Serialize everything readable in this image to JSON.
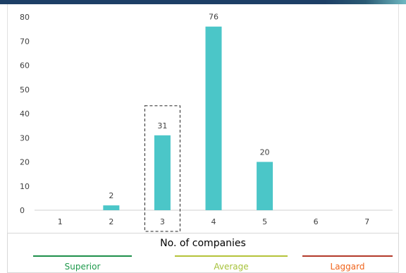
{
  "chart_data": {
    "type": "bar",
    "categories": [
      "1",
      "2",
      "3",
      "4",
      "5",
      "6",
      "7"
    ],
    "values": [
      0,
      2,
      31,
      76,
      20,
      0,
      0
    ],
    "data_labels": [
      "",
      "2",
      "31",
      "76",
      "20",
      "",
      ""
    ],
    "yticks": [
      "0",
      "10",
      "20",
      "30",
      "40",
      "50",
      "60",
      "70",
      "80"
    ],
    "ylim": [
      0,
      80
    ],
    "xlabel": "No. of companies",
    "highlighted_category": "3",
    "bar_color": "#4bc6c8",
    "grid": false
  },
  "legend": {
    "items": [
      {
        "label": "Superior",
        "color": "#1e9a4c",
        "line_color": "#1e8f4a"
      },
      {
        "label": "Average",
        "color": "#a6c23a",
        "line_color": "#b5c33a"
      },
      {
        "label": "Laggard",
        "color": "#f0631a",
        "line_color": "#b33a2a"
      }
    ]
  }
}
